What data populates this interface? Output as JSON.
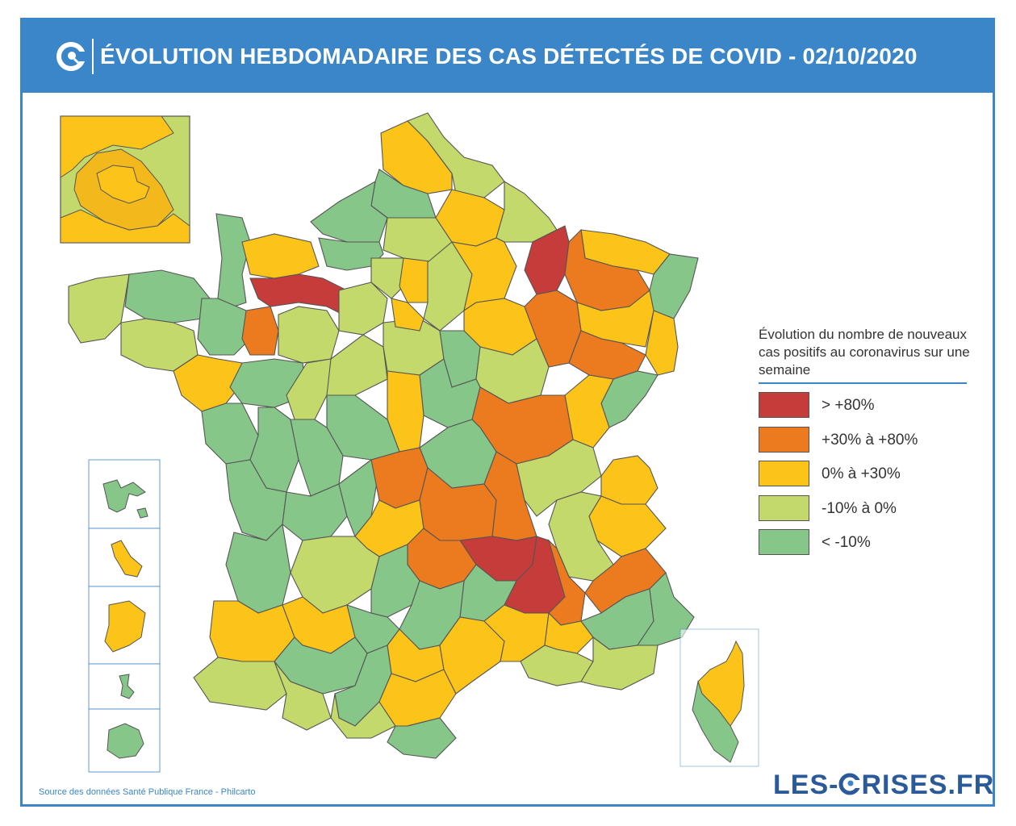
{
  "header": {
    "title": "ÉVOLUTION HEBDOMADAIRE DES CAS DÉTECTÉS DE COVID - 02/10/2020"
  },
  "legend": {
    "title": "Évolution du nombre de nouveaux cas positifs au coronavirus sur une semaine",
    "items": [
      {
        "label": "> +80%",
        "color": "#c53c3a"
      },
      {
        "label": "+30% à +80%",
        "color": "#ec7a1e"
      },
      {
        "label": "0% à +30%",
        "color": "#fcc419"
      },
      {
        "label": "-10% à 0%",
        "color": "#c4d96b"
      },
      {
        "label": "< -10%",
        "color": "#86c688"
      }
    ]
  },
  "source": "Source des données Santé Publique France - Philcarto",
  "brand": {
    "text_before": "LES-",
    "text_after": "RISES.FR"
  },
  "colors": {
    "accent": "#3a86c8",
    "border": "#555555"
  }
}
